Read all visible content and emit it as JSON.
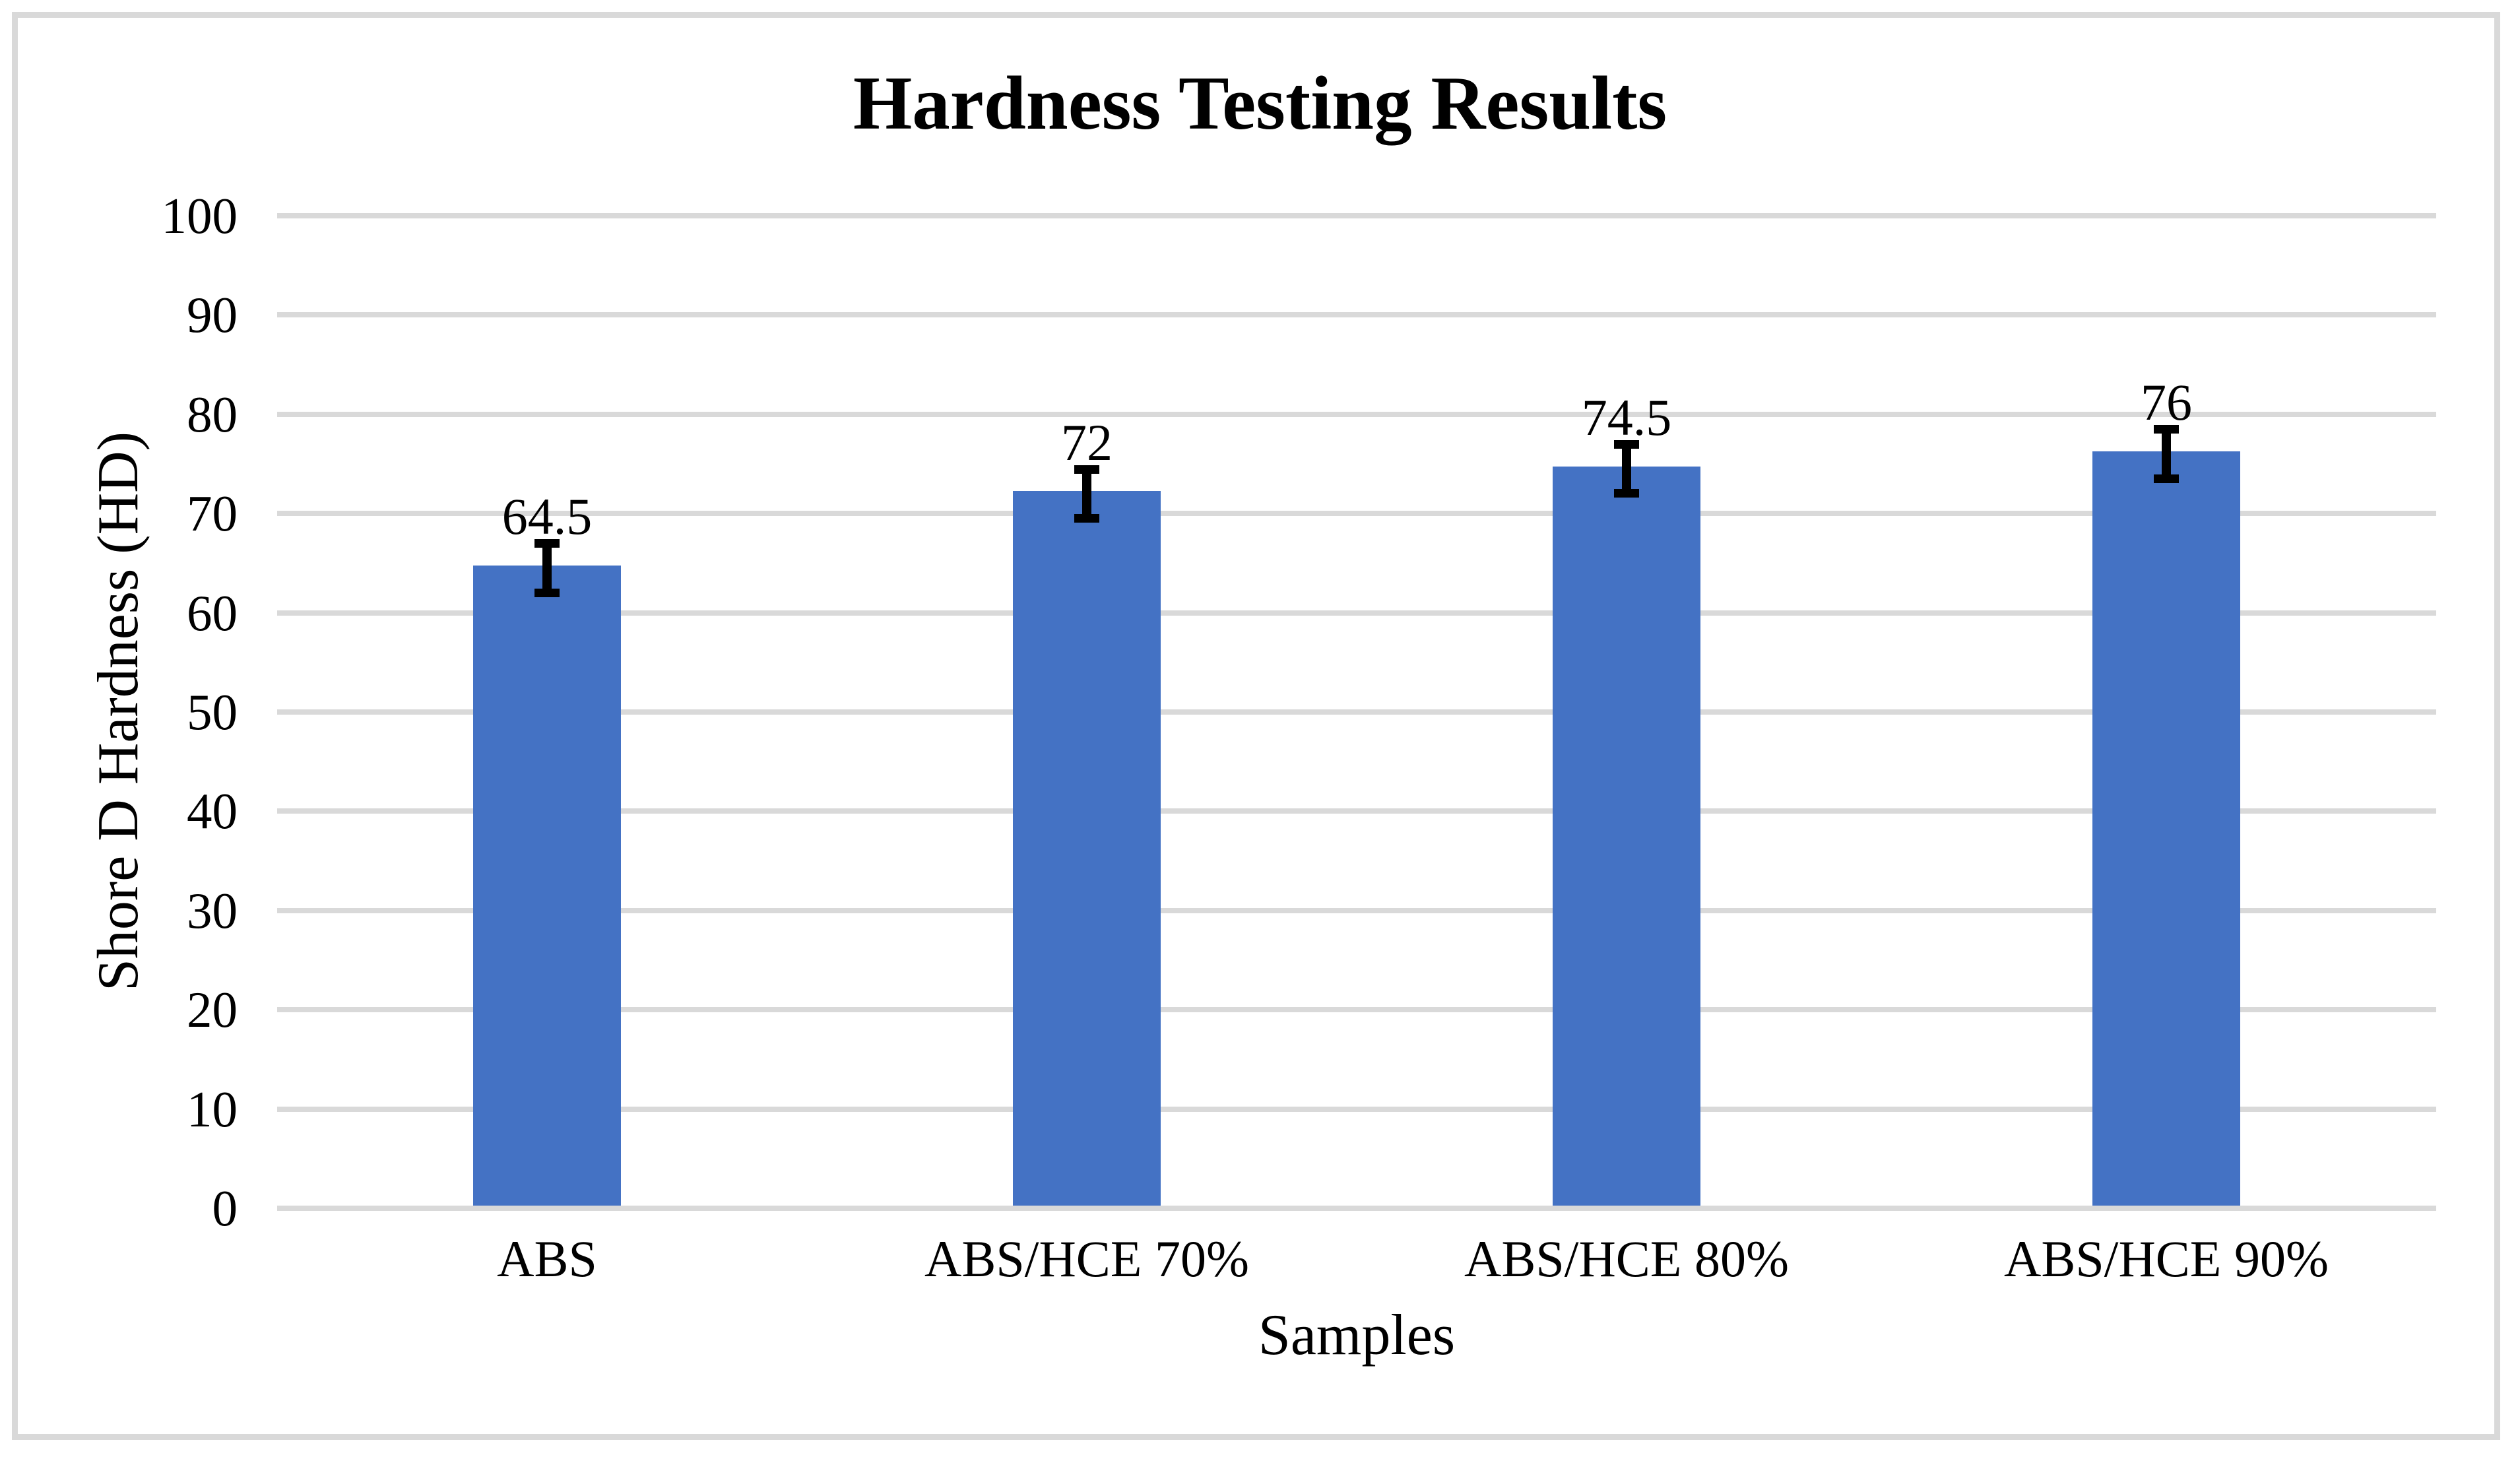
{
  "chart_data": {
    "type": "bar",
    "title": "Hardness Testing Results",
    "categories": [
      "ABS",
      "ABS/HCE 70%",
      "ABS/HCE 80%",
      "ABS/HCE 90%"
    ],
    "values": [
      64.5,
      72,
      74.5,
      76
    ],
    "data_labels": [
      "64.5",
      "72",
      "74.5",
      "76"
    ],
    "error_bar_plus_minus": 2.5,
    "xlabel": "Samples",
    "ylabel": "Shore D Hardness (HD)",
    "ylim": [
      0,
      100
    ],
    "ytick_step": 10,
    "ytick_labels": [
      "0",
      "10",
      "20",
      "30",
      "40",
      "50",
      "60",
      "70",
      "80",
      "90",
      "100"
    ],
    "grid": true,
    "legend": false,
    "colors": {
      "bar": "#4472C4",
      "gridline": "#D9D9D9",
      "border": "#D9D9D9",
      "text": "#000000",
      "error_bar": "#000000"
    }
  }
}
